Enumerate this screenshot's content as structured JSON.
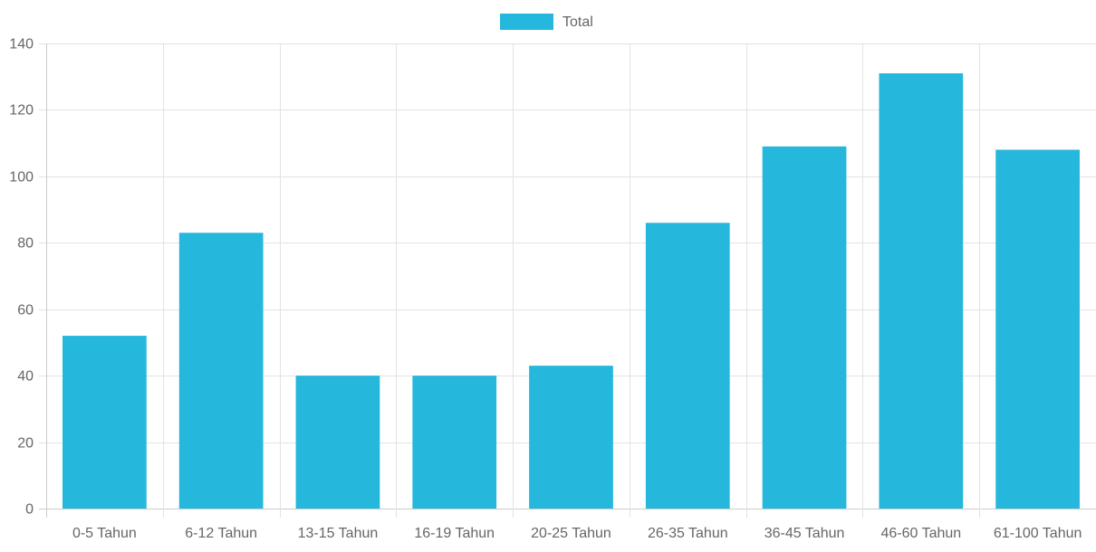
{
  "legend": {
    "label": "Total",
    "color": "#26b7dc"
  },
  "chart_data": {
    "type": "bar",
    "categories": [
      "0-5 Tahun",
      "6-12 Tahun",
      "13-15 Tahun",
      "16-19 Tahun",
      "20-25 Tahun",
      "26-35 Tahun",
      "36-45 Tahun",
      "46-60 Tahun",
      "61-100 Tahun"
    ],
    "series": [
      {
        "name": "Total",
        "values": [
          52,
          83,
          40,
          40,
          43,
          86,
          109,
          131,
          108
        ]
      }
    ],
    "ylim": [
      0,
      140
    ],
    "yticks": [
      "0",
      "20",
      "40",
      "60",
      "80",
      "100",
      "120",
      "140"
    ],
    "grid": true,
    "legend_position": "top-center",
    "bar_color": "#26b7dc",
    "grid_color": "#e3e3e3",
    "axis_color": "#cccccc"
  }
}
